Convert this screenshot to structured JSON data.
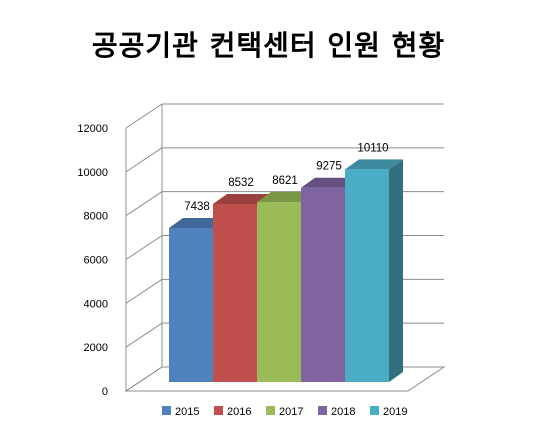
{
  "chart_data": {
    "type": "bar",
    "title": "공공기관 컨택센터 인원 현황",
    "categories": [
      "2015",
      "2016",
      "2017",
      "2018",
      "2019"
    ],
    "values": [
      7438,
      8532,
      8621,
      9275,
      10110
    ],
    "colors": [
      "#4F81BD",
      "#C0504D",
      "#9BBB59",
      "#8064A2",
      "#4BACC6"
    ],
    "ylim": [
      0,
      12000
    ],
    "yticks": [
      0,
      2000,
      4000,
      6000,
      8000,
      10000,
      12000
    ],
    "legend": [
      "2015",
      "2016",
      "2017",
      "2018",
      "2019"
    ],
    "legend_position": "bottom",
    "grid": true,
    "style": "3d-column"
  }
}
